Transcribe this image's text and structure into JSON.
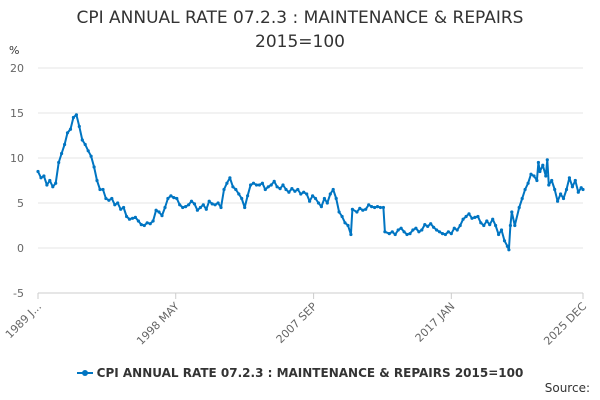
{
  "chart_data": {
    "type": "line",
    "title_line1": "CPI ANNUAL RATE 07.2.3 : MAINTENANCE & REPAIRS",
    "title_line2": "2015=100",
    "ylabel": "%",
    "ylim": [
      -5,
      20
    ],
    "yticks": [
      "20",
      "15",
      "10",
      "5",
      "0",
      "-5"
    ],
    "ytick_values": [
      20,
      15,
      10,
      5,
      0,
      -5
    ],
    "xlim": [
      1989.0,
      2025.92
    ],
    "xticks": [
      {
        "label": "1989 J...",
        "x": 1989.0
      },
      {
        "label": "1998 MAY",
        "x": 1998.33
      },
      {
        "label": "2007 SEP",
        "x": 2007.67
      },
      {
        "label": "2017 JAN",
        "x": 2017.0
      },
      {
        "label": "2025 DEC",
        "x": 2025.92
      }
    ],
    "grid": true,
    "series": [
      {
        "name": "CPI ANNUAL RATE 07.2.3 : MAINTENANCE & REPAIRS 2015=100",
        "color": "#0075c2",
        "points": [
          [
            1989.0,
            8.5
          ],
          [
            1989.2,
            7.8
          ],
          [
            1989.4,
            8.0
          ],
          [
            1989.6,
            7.0
          ],
          [
            1989.8,
            7.5
          ],
          [
            1990.0,
            6.8
          ],
          [
            1990.2,
            7.2
          ],
          [
            1990.4,
            9.5
          ],
          [
            1990.6,
            10.5
          ],
          [
            1990.8,
            11.5
          ],
          [
            1991.0,
            12.8
          ],
          [
            1991.2,
            13.2
          ],
          [
            1991.4,
            14.5
          ],
          [
            1991.6,
            14.8
          ],
          [
            1991.8,
            13.5
          ],
          [
            1992.0,
            12.0
          ],
          [
            1992.2,
            11.5
          ],
          [
            1992.4,
            10.8
          ],
          [
            1992.6,
            10.2
          ],
          [
            1992.8,
            9.0
          ],
          [
            1993.0,
            7.5
          ],
          [
            1993.2,
            6.5
          ],
          [
            1993.4,
            6.5
          ],
          [
            1993.6,
            5.5
          ],
          [
            1993.8,
            5.3
          ],
          [
            1994.0,
            5.5
          ],
          [
            1994.2,
            4.8
          ],
          [
            1994.4,
            5.0
          ],
          [
            1994.6,
            4.3
          ],
          [
            1994.8,
            4.5
          ],
          [
            1995.0,
            3.5
          ],
          [
            1995.2,
            3.2
          ],
          [
            1995.4,
            3.3
          ],
          [
            1995.6,
            3.4
          ],
          [
            1995.8,
            3.0
          ],
          [
            1996.0,
            2.6
          ],
          [
            1996.2,
            2.5
          ],
          [
            1996.4,
            2.8
          ],
          [
            1996.6,
            2.7
          ],
          [
            1996.8,
            3.0
          ],
          [
            1997.0,
            4.2
          ],
          [
            1997.2,
            4.0
          ],
          [
            1997.4,
            3.6
          ],
          [
            1997.6,
            4.5
          ],
          [
            1997.8,
            5.5
          ],
          [
            1998.0,
            5.8
          ],
          [
            1998.2,
            5.6
          ],
          [
            1998.4,
            5.5
          ],
          [
            1998.6,
            4.8
          ],
          [
            1998.8,
            4.5
          ],
          [
            1999.0,
            4.6
          ],
          [
            1999.2,
            4.8
          ],
          [
            1999.4,
            5.2
          ],
          [
            1999.6,
            4.9
          ],
          [
            1999.8,
            4.2
          ],
          [
            2000.0,
            4.5
          ],
          [
            2000.2,
            4.8
          ],
          [
            2000.4,
            4.3
          ],
          [
            2000.6,
            5.2
          ],
          [
            2000.8,
            4.9
          ],
          [
            2001.0,
            4.8
          ],
          [
            2001.2,
            5.0
          ],
          [
            2001.4,
            4.5
          ],
          [
            2001.6,
            6.5
          ],
          [
            2001.8,
            7.2
          ],
          [
            2002.0,
            7.8
          ],
          [
            2002.2,
            6.8
          ],
          [
            2002.4,
            6.5
          ],
          [
            2002.6,
            6.0
          ],
          [
            2002.8,
            5.5
          ],
          [
            2003.0,
            4.5
          ],
          [
            2003.2,
            5.8
          ],
          [
            2003.4,
            7.0
          ],
          [
            2003.6,
            7.2
          ],
          [
            2003.8,
            7.0
          ],
          [
            2004.0,
            7.0
          ],
          [
            2004.2,
            7.2
          ],
          [
            2004.4,
            6.5
          ],
          [
            2004.6,
            6.8
          ],
          [
            2004.8,
            7.0
          ],
          [
            2005.0,
            7.4
          ],
          [
            2005.2,
            6.8
          ],
          [
            2005.4,
            6.6
          ],
          [
            2005.6,
            7.0
          ],
          [
            2005.8,
            6.5
          ],
          [
            2006.0,
            6.2
          ],
          [
            2006.2,
            6.6
          ],
          [
            2006.4,
            6.3
          ],
          [
            2006.6,
            6.5
          ],
          [
            2006.8,
            6.0
          ],
          [
            2007.0,
            6.2
          ],
          [
            2007.2,
            6.0
          ],
          [
            2007.4,
            5.2
          ],
          [
            2007.6,
            5.8
          ],
          [
            2007.8,
            5.5
          ],
          [
            2008.0,
            5.0
          ],
          [
            2008.2,
            4.6
          ],
          [
            2008.4,
            5.5
          ],
          [
            2008.6,
            5.0
          ],
          [
            2008.8,
            6.0
          ],
          [
            2009.0,
            6.5
          ],
          [
            2009.2,
            5.5
          ],
          [
            2009.4,
            4.0
          ],
          [
            2009.6,
            3.5
          ],
          [
            2009.8,
            2.8
          ],
          [
            2010.0,
            2.5
          ],
          [
            2010.2,
            1.5
          ],
          [
            2010.3,
            4.3
          ],
          [
            2010.6,
            4.0
          ],
          [
            2010.8,
            4.4
          ],
          [
            2011.0,
            4.2
          ],
          [
            2011.2,
            4.3
          ],
          [
            2011.4,
            4.8
          ],
          [
            2011.6,
            4.6
          ],
          [
            2011.8,
            4.5
          ],
          [
            2012.0,
            4.6
          ],
          [
            2012.2,
            4.5
          ],
          [
            2012.4,
            4.5
          ],
          [
            2012.5,
            1.8
          ],
          [
            2012.8,
            1.6
          ],
          [
            2013.0,
            1.8
          ],
          [
            2013.2,
            1.5
          ],
          [
            2013.4,
            2.0
          ],
          [
            2013.6,
            2.2
          ],
          [
            2013.8,
            1.8
          ],
          [
            2014.0,
            1.5
          ],
          [
            2014.2,
            1.6
          ],
          [
            2014.4,
            2.0
          ],
          [
            2014.6,
            2.2
          ],
          [
            2014.8,
            1.8
          ],
          [
            2015.0,
            2.0
          ],
          [
            2015.2,
            2.6
          ],
          [
            2015.4,
            2.4
          ],
          [
            2015.6,
            2.7
          ],
          [
            2015.8,
            2.3
          ],
          [
            2016.0,
            2.0
          ],
          [
            2016.2,
            1.8
          ],
          [
            2016.4,
            1.6
          ],
          [
            2016.6,
            1.5
          ],
          [
            2016.8,
            1.8
          ],
          [
            2017.0,
            1.6
          ],
          [
            2017.2,
            2.2
          ],
          [
            2017.4,
            2.0
          ],
          [
            2017.6,
            2.5
          ],
          [
            2017.8,
            3.2
          ],
          [
            2018.0,
            3.5
          ],
          [
            2018.2,
            3.8
          ],
          [
            2018.4,
            3.3
          ],
          [
            2018.6,
            3.4
          ],
          [
            2018.8,
            3.5
          ],
          [
            2019.0,
            2.8
          ],
          [
            2019.2,
            2.5
          ],
          [
            2019.4,
            3.0
          ],
          [
            2019.6,
            2.6
          ],
          [
            2019.8,
            3.2
          ],
          [
            2020.0,
            2.5
          ],
          [
            2020.2,
            1.5
          ],
          [
            2020.4,
            2.0
          ],
          [
            2020.6,
            0.8
          ],
          [
            2020.8,
            0.2
          ],
          [
            2020.9,
            -0.2
          ],
          [
            2021.0,
            2.5
          ],
          [
            2021.1,
            4.0
          ],
          [
            2021.3,
            2.5
          ],
          [
            2021.6,
            4.5
          ],
          [
            2021.8,
            5.5
          ],
          [
            2022.0,
            6.5
          ],
          [
            2022.2,
            7.2
          ],
          [
            2022.4,
            8.2
          ],
          [
            2022.6,
            8.0
          ],
          [
            2022.8,
            7.5
          ],
          [
            2022.9,
            9.5
          ],
          [
            2023.0,
            8.5
          ],
          [
            2023.2,
            9.2
          ],
          [
            2023.4,
            8.0
          ],
          [
            2023.5,
            9.8
          ],
          [
            2023.6,
            7.0
          ],
          [
            2023.8,
            7.5
          ],
          [
            2024.0,
            6.5
          ],
          [
            2024.2,
            5.2
          ],
          [
            2024.4,
            6.0
          ],
          [
            2024.6,
            5.5
          ],
          [
            2024.8,
            6.5
          ],
          [
            2025.0,
            7.8
          ],
          [
            2025.2,
            6.8
          ],
          [
            2025.4,
            7.5
          ],
          [
            2025.6,
            6.2
          ],
          [
            2025.8,
            6.7
          ],
          [
            2025.92,
            6.5
          ]
        ]
      }
    ]
  },
  "legend": {
    "label": "CPI ANNUAL RATE 07.2.3 : MAINTENANCE & REPAIRS 2015=100"
  },
  "footer": {
    "source": "Source:"
  }
}
